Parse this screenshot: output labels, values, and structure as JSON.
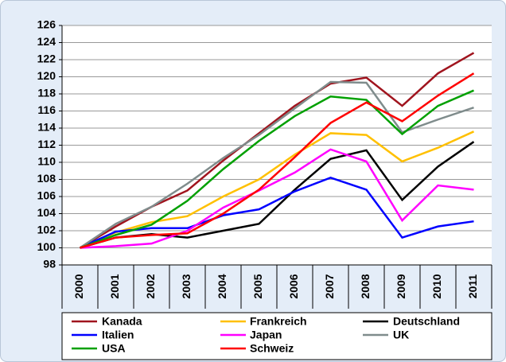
{
  "chart_data": {
    "type": "line",
    "categories": [
      "2000",
      "2001",
      "2002",
      "2003",
      "2004",
      "2005",
      "2006",
      "2007",
      "2008",
      "2009",
      "2010",
      "2011"
    ],
    "ylim": [
      98,
      126
    ],
    "yticks": [
      98,
      100,
      102,
      104,
      106,
      108,
      110,
      112,
      114,
      116,
      118,
      120,
      122,
      124,
      126
    ],
    "grid": true,
    "legend": "bottom",
    "series": [
      {
        "name": "Kanada",
        "color": "#a0141e",
        "values": [
          100,
          102.5,
          104.8,
          106.7,
          110.2,
          113.4,
          116.6,
          119.2,
          119.9,
          116.6,
          120.4,
          122.8
        ]
      },
      {
        "name": "Frankreich",
        "color": "#ffc000",
        "values": [
          100,
          101.8,
          103.0,
          103.7,
          106.0,
          108.0,
          110.9,
          113.4,
          113.2,
          110.1,
          111.7,
          113.6
        ]
      },
      {
        "name": "Deutschland",
        "color": "#000000",
        "values": [
          100,
          101.2,
          101.6,
          101.2,
          102.0,
          102.8,
          106.8,
          110.4,
          111.4,
          105.6,
          109.5,
          112.4
        ]
      },
      {
        "name": "Italien",
        "color": "#0000ff",
        "values": [
          100,
          101.9,
          102.3,
          102.3,
          103.8,
          104.5,
          106.6,
          108.2,
          106.8,
          101.2,
          102.5,
          103.1
        ]
      },
      {
        "name": "Japan",
        "color": "#ff00ff",
        "values": [
          100,
          100.2,
          100.5,
          102.0,
          104.7,
          106.7,
          108.8,
          111.5,
          110.1,
          103.2,
          107.3,
          106.8
        ]
      },
      {
        "name": "UK",
        "color": "#7f8c8c",
        "values": [
          100,
          102.8,
          104.8,
          107.5,
          110.5,
          113.2,
          116.3,
          119.4,
          119.3,
          113.5,
          115.0,
          116.4
        ]
      },
      {
        "name": "USA",
        "color": "#00a000",
        "values": [
          100,
          101.5,
          102.7,
          105.5,
          109.2,
          112.5,
          115.4,
          117.7,
          117.3,
          113.3,
          116.6,
          118.4
        ]
      },
      {
        "name": "Schweiz",
        "color": "#ff0000",
        "values": [
          100,
          101.2,
          101.5,
          101.7,
          104.0,
          106.8,
          110.6,
          114.6,
          117.0,
          114.8,
          117.8,
          120.4
        ]
      }
    ]
  }
}
